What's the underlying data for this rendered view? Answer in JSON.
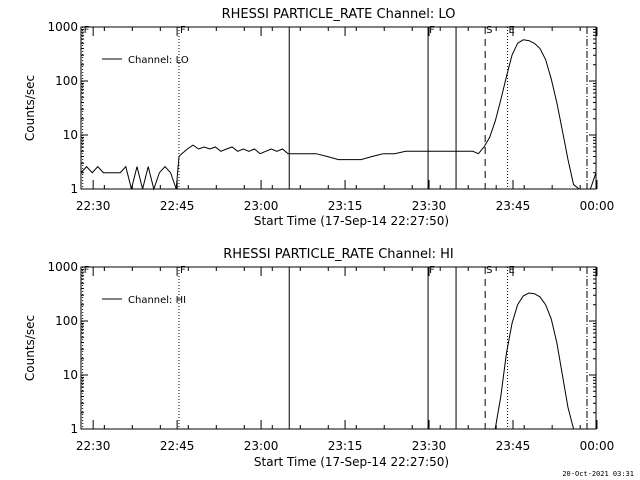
{
  "footer": {
    "timestamp": "20-Oct-2021 03:31"
  },
  "chart_data": [
    {
      "type": "line",
      "title": "RHESSI PARTICLE_RATE Channel: LO",
      "xlabel": "Start Time (17-Sep-14 22:27:50)",
      "ylabel": "Counts/sec",
      "y_scale": "log",
      "xlim_minutes": [
        0,
        92
      ],
      "ylim": [
        1,
        1000
      ],
      "x_tick_labels": [
        "22:30",
        "22:45",
        "23:00",
        "23:15",
        "23:30",
        "23:45",
        "00:00"
      ],
      "x_tick_minutes": [
        2.17,
        17.17,
        32.17,
        47.17,
        62.17,
        77.17,
        92.17
      ],
      "y_tick_labels": [
        "1",
        "10",
        "100",
        "1000"
      ],
      "y_tick_values": [
        1,
        10,
        100,
        1000
      ],
      "legend": {
        "label": "Channel: LO",
        "position": "top-left"
      },
      "markers": [
        {
          "minute": 0.3,
          "label": "F",
          "style": "dotted"
        },
        {
          "minute": 17.5,
          "label": "F",
          "style": "dotted"
        },
        {
          "minute": 37.2,
          "label": "",
          "style": "solid"
        },
        {
          "minute": 62.0,
          "label": "F",
          "style": "solid"
        },
        {
          "minute": 67.0,
          "label": "",
          "style": "solid"
        },
        {
          "minute": 72.2,
          "label": "S",
          "style": "dashed"
        },
        {
          "minute": 76.2,
          "label": "E",
          "style": "dotted"
        },
        {
          "minute": 92.6,
          "label": "",
          "style": "dashed"
        },
        {
          "minute": 96.3,
          "label": "",
          "style": "dotted"
        }
      ],
      "series": [
        {
          "name": "Channel: LO",
          "x": [
            0,
            1,
            2,
            3,
            4,
            5,
            6,
            7,
            8,
            9,
            10,
            11,
            12,
            13,
            14,
            15,
            16,
            17,
            17.5,
            18,
            19,
            20,
            21,
            22,
            23,
            24,
            25,
            26,
            27,
            28,
            29,
            30,
            31,
            32,
            33,
            34,
            35,
            36,
            37,
            38,
            40,
            42,
            44,
            46,
            48,
            50,
            52,
            54,
            56,
            58,
            60,
            62,
            64,
            66,
            68,
            70,
            71,
            72,
            73,
            74,
            75,
            76,
            77,
            78,
            79,
            80,
            81,
            82,
            83,
            84,
            85,
            86,
            87,
            88,
            89,
            90,
            91,
            92
          ],
          "y": [
            2,
            2.6,
            2,
            2.6,
            2,
            2,
            2,
            2,
            2.6,
            1,
            2.6,
            1,
            2.6,
            1,
            2,
            2.6,
            2,
            1,
            4,
            4.5,
            5.5,
            6.5,
            5.5,
            6,
            5.5,
            6,
            5,
            5.5,
            6,
            5,
            5.5,
            5,
            5.5,
            4.5,
            5,
            5.5,
            5,
            5.5,
            4.5,
            4.5,
            4.5,
            4.5,
            4,
            3.5,
            3.5,
            3.5,
            4,
            4.5,
            4.5,
            5,
            5,
            5,
            5,
            5,
            5,
            5,
            4.5,
            6,
            9,
            18,
            45,
            120,
            300,
            500,
            580,
            560,
            500,
            400,
            250,
            110,
            40,
            12,
            3.5,
            1.2,
            1,
            1,
            1,
            2
          ]
        }
      ]
    },
    {
      "type": "line",
      "title": "RHESSI PARTICLE_RATE Channel: HI",
      "xlabel": "Start Time (17-Sep-14 22:27:50)",
      "ylabel": "Counts/sec",
      "y_scale": "log",
      "xlim_minutes": [
        0,
        92
      ],
      "ylim": [
        1,
        1000
      ],
      "x_tick_labels": [
        "22:30",
        "22:45",
        "23:00",
        "23:15",
        "23:30",
        "23:45",
        "00:00"
      ],
      "x_tick_minutes": [
        2.17,
        17.17,
        32.17,
        47.17,
        62.17,
        77.17,
        92.17
      ],
      "y_tick_labels": [
        "1",
        "10",
        "100",
        "1000"
      ],
      "y_tick_values": [
        1,
        10,
        100,
        1000
      ],
      "legend": {
        "label": "Channel: HI",
        "position": "top-left"
      },
      "markers": [
        {
          "minute": 0.3,
          "label": "F",
          "style": "dotted"
        },
        {
          "minute": 17.5,
          "label": "F",
          "style": "dotted"
        },
        {
          "minute": 37.2,
          "label": "",
          "style": "solid"
        },
        {
          "minute": 62.0,
          "label": "F",
          "style": "solid"
        },
        {
          "minute": 67.0,
          "label": "",
          "style": "solid"
        },
        {
          "minute": 72.2,
          "label": "S",
          "style": "dashed"
        },
        {
          "minute": 76.2,
          "label": "E",
          "style": "dotted"
        },
        {
          "minute": 92.6,
          "label": "",
          "style": "dashed"
        },
        {
          "minute": 96.3,
          "label": "",
          "style": "dotted"
        }
      ],
      "series": [
        {
          "name": "Channel: HI",
          "x": [
            74.0,
            75.0,
            76.0,
            77.0,
            78.0,
            79.0,
            80.0,
            81.0,
            82.0,
            83.0,
            84.0,
            85.0,
            86.0,
            87.0,
            88.0
          ],
          "y": [
            1,
            4,
            25,
            90,
            200,
            290,
            330,
            320,
            280,
            200,
            110,
            40,
            10,
            2.5,
            1
          ]
        }
      ]
    }
  ]
}
